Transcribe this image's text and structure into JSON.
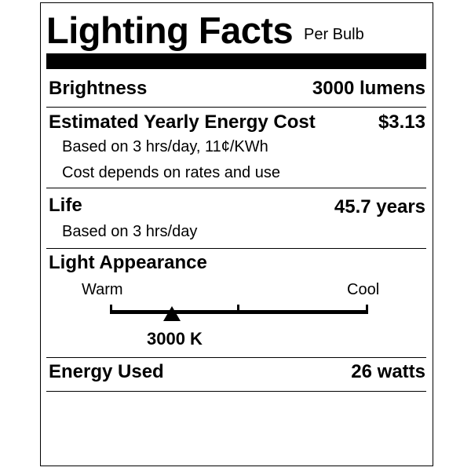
{
  "title": "Lighting Facts",
  "subtitle": "Per Bulb",
  "brightness": {
    "label": "Brightness",
    "value": "3000 lumens"
  },
  "energy_cost": {
    "label": "Estimated Yearly Energy Cost",
    "value": "$3.13",
    "notes": [
      "Based on 3 hrs/day, 11¢/KWh",
      "Cost depends on rates and use"
    ]
  },
  "life": {
    "label": "Life",
    "value": "45.7 years",
    "note": "Based on 3 hrs/day"
  },
  "light_appearance": {
    "label": "Light Appearance",
    "warm_label": "Warm",
    "cool_label": "Cool",
    "value": "3000 K",
    "marker_fraction": 0.24
  },
  "energy_used": {
    "label": "Energy Used",
    "value": "26 watts"
  }
}
